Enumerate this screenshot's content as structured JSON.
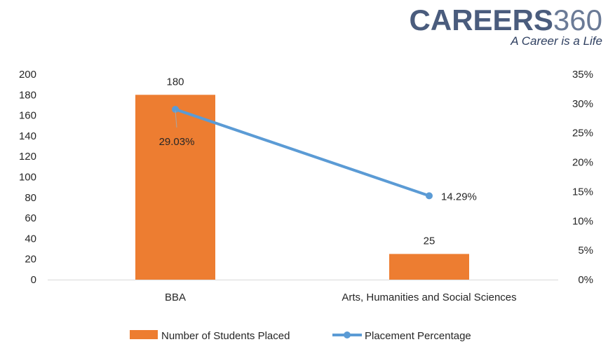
{
  "logo": {
    "brand": "CAREERS",
    "number": "360",
    "tagline": "A Career is a Life"
  },
  "chart_data": {
    "type": "bar",
    "categories": [
      "BBA",
      "Arts, Humanities and Social Sciences"
    ],
    "series": [
      {
        "name": "Number of Students Placed",
        "type": "bar",
        "axis": "left",
        "color": "#ed7d31",
        "values": [
          180,
          25
        ],
        "labels": [
          "180",
          "25"
        ]
      },
      {
        "name": "Placement Percentage",
        "type": "line",
        "axis": "right",
        "color": "#5b9bd5",
        "values": [
          29.03,
          14.29
        ],
        "labels": [
          "29.03%",
          "14.29%"
        ]
      }
    ],
    "y_left": {
      "min": 0,
      "max": 200,
      "step": 20,
      "ticks": [
        "0",
        "20",
        "40",
        "60",
        "80",
        "100",
        "120",
        "140",
        "160",
        "180",
        "200"
      ]
    },
    "y_right": {
      "min": 0,
      "max": 35,
      "step": 5,
      "ticks": [
        "0%",
        "5%",
        "10%",
        "15%",
        "20%",
        "25%",
        "30%",
        "35%"
      ]
    },
    "grid": false,
    "legend_position": "bottom"
  }
}
